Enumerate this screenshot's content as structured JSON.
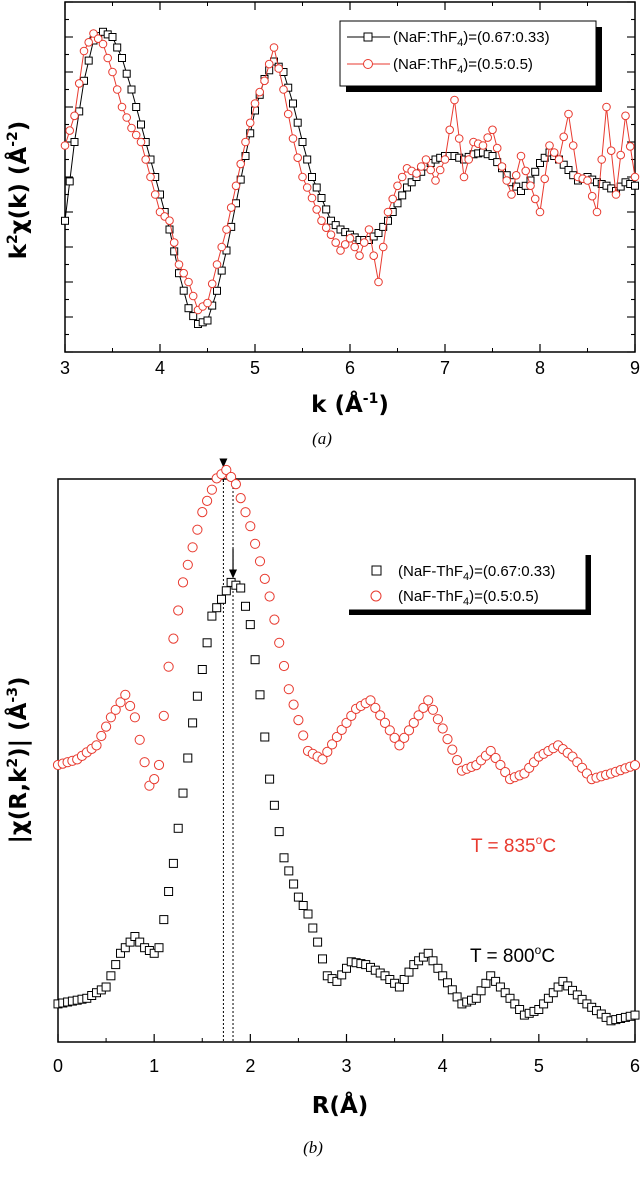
{
  "chart_data": [
    {
      "type": "line",
      "panel": "(a)",
      "xlabel": "k (Å-1)",
      "ylabel": "k2χ(k) (Å-2)",
      "xlim": [
        3,
        9
      ],
      "ylim": [
        -1.0,
        1.0
      ],
      "xticks": [
        "3",
        "4",
        "5",
        "6",
        "7",
        "8",
        "9"
      ],
      "legend": "top-right",
      "series": [
        {
          "name": "(NaF:ThF4)=(0.67:0.33)",
          "color": "#000000",
          "marker": "square",
          "points": [
            [
              3.0,
              -0.25
            ],
            [
              3.1,
              0.2
            ],
            [
              3.2,
              0.55
            ],
            [
              3.3,
              0.78
            ],
            [
              3.4,
              0.83
            ],
            [
              3.5,
              0.8
            ],
            [
              3.6,
              0.68
            ],
            [
              3.7,
              0.5
            ],
            [
              3.8,
              0.3
            ],
            [
              3.9,
              0.1
            ],
            [
              4.0,
              -0.1
            ],
            [
              4.1,
              -0.3
            ],
            [
              4.2,
              -0.55
            ],
            [
              4.3,
              -0.75
            ],
            [
              4.4,
              -0.84
            ],
            [
              4.5,
              -0.82
            ],
            [
              4.6,
              -0.65
            ],
            [
              4.7,
              -0.42
            ],
            [
              4.8,
              -0.15
            ],
            [
              4.9,
              0.12
            ],
            [
              5.0,
              0.38
            ],
            [
              5.1,
              0.56
            ],
            [
              5.2,
              0.66
            ],
            [
              5.3,
              0.6
            ],
            [
              5.4,
              0.42
            ],
            [
              5.5,
              0.2
            ],
            [
              5.6,
              0.0
            ],
            [
              5.7,
              -0.12
            ],
            [
              5.8,
              -0.25
            ],
            [
              5.9,
              -0.3
            ],
            [
              6.0,
              -0.33
            ],
            [
              6.1,
              -0.36
            ],
            [
              6.2,
              -0.36
            ],
            [
              6.3,
              -0.32
            ],
            [
              6.4,
              -0.25
            ],
            [
              6.5,
              -0.15
            ],
            [
              6.6,
              -0.06
            ],
            [
              6.7,
              0.0
            ],
            [
              6.8,
              0.06
            ],
            [
              6.9,
              0.1
            ],
            [
              7.0,
              0.12
            ],
            [
              7.1,
              0.12
            ],
            [
              7.2,
              0.1
            ],
            [
              7.3,
              0.13
            ],
            [
              7.4,
              0.14
            ],
            [
              7.5,
              0.12
            ],
            [
              7.6,
              0.05
            ],
            [
              7.7,
              -0.03
            ],
            [
              7.8,
              -0.08
            ],
            [
              7.9,
              -0.02
            ],
            [
              8.0,
              0.08
            ],
            [
              8.1,
              0.14
            ],
            [
              8.2,
              0.1
            ],
            [
              8.3,
              0.04
            ],
            [
              8.4,
              -0.02
            ],
            [
              8.5,
              0.0
            ],
            [
              8.6,
              -0.03
            ],
            [
              8.7,
              -0.05
            ],
            [
              8.8,
              -0.08
            ],
            [
              8.9,
              -0.03
            ],
            [
              9.0,
              -0.05
            ]
          ]
        },
        {
          "name": "(NaF:ThF4)=(0.5:0.5)",
          "color": "#e83a2f",
          "marker": "circle",
          "points": [
            [
              3.0,
              0.18
            ],
            [
              3.1,
              0.35
            ],
            [
              3.2,
              0.72
            ],
            [
              3.3,
              0.82
            ],
            [
              3.4,
              0.76
            ],
            [
              3.5,
              0.6
            ],
            [
              3.6,
              0.4
            ],
            [
              3.7,
              0.28
            ],
            [
              3.8,
              0.2
            ],
            [
              3.9,
              0.0
            ],
            [
              4.0,
              -0.2
            ],
            [
              4.1,
              -0.25
            ],
            [
              4.2,
              -0.5
            ],
            [
              4.3,
              -0.6
            ],
            [
              4.4,
              -0.76
            ],
            [
              4.5,
              -0.72
            ],
            [
              4.6,
              -0.5
            ],
            [
              4.7,
              -0.3
            ],
            [
              4.8,
              -0.05
            ],
            [
              4.9,
              0.2
            ],
            [
              5.0,
              0.42
            ],
            [
              5.1,
              0.55
            ],
            [
              5.2,
              0.74
            ],
            [
              5.3,
              0.5
            ],
            [
              5.4,
              0.22
            ],
            [
              5.5,
              0.0
            ],
            [
              5.6,
              -0.12
            ],
            [
              5.7,
              -0.25
            ],
            [
              5.8,
              -0.33
            ],
            [
              5.9,
              -0.42
            ],
            [
              6.0,
              -0.35
            ],
            [
              6.1,
              -0.45
            ],
            [
              6.2,
              -0.3
            ],
            [
              6.3,
              -0.6
            ],
            [
              6.4,
              -0.2
            ],
            [
              6.5,
              -0.05
            ],
            [
              6.6,
              0.05
            ],
            [
              6.7,
              0.02
            ],
            [
              6.8,
              0.1
            ],
            [
              6.9,
              -0.02
            ],
            [
              7.0,
              0.1
            ],
            [
              7.1,
              0.44
            ],
            [
              7.2,
              0.0
            ],
            [
              7.3,
              0.2
            ],
            [
              7.4,
              0.18
            ],
            [
              7.5,
              0.27
            ],
            [
              7.6,
              0.06
            ],
            [
              7.7,
              -0.1
            ],
            [
              7.8,
              0.12
            ],
            [
              7.9,
              -0.05
            ],
            [
              8.0,
              -0.2
            ],
            [
              8.1,
              0.18
            ],
            [
              8.2,
              0.1
            ],
            [
              8.3,
              0.36
            ],
            [
              8.4,
              0.0
            ],
            [
              8.5,
              -0.02
            ],
            [
              8.6,
              -0.2
            ],
            [
              8.7,
              0.4
            ],
            [
              8.8,
              -0.1
            ],
            [
              8.9,
              0.35
            ],
            [
              9.0,
              0.0
            ]
          ]
        }
      ]
    },
    {
      "type": "scatter",
      "panel": "(b)",
      "xlabel": "R(Å)",
      "ylabel": "|χ(R,k2)| (Å-3)",
      "xlim": [
        0,
        6
      ],
      "xticks": [
        "0",
        "1",
        "2",
        "3",
        "4",
        "5",
        "6"
      ],
      "legend": "top-right",
      "peak_markers_R": [
        1.72,
        1.82
      ],
      "annotations": [
        {
          "text": "T = 835°C",
          "color": "#e83a2f",
          "series": "(NaF-ThF4)=(0.5:0.5)"
        },
        {
          "text": "T = 800°C",
          "color": "#000000",
          "series": "(NaF-ThF4)=(0.67:0.33)"
        }
      ],
      "series": [
        {
          "name": "(NaF-ThF4)=(0.67:0.33)",
          "color": "#000000",
          "marker": "square",
          "points": [
            [
              0.0,
              0.1
            ],
            [
              0.3,
              0.12
            ],
            [
              0.5,
              0.16
            ],
            [
              0.65,
              0.28
            ],
            [
              0.8,
              0.34
            ],
            [
              0.9,
              0.3
            ],
            [
              1.0,
              0.28
            ],
            [
              1.05,
              0.3
            ],
            [
              1.2,
              0.6
            ],
            [
              1.4,
              1.1
            ],
            [
              1.6,
              1.48
            ],
            [
              1.8,
              1.6
            ],
            [
              1.9,
              1.58
            ],
            [
              2.0,
              1.45
            ],
            [
              2.1,
              1.2
            ],
            [
              2.2,
              0.9
            ],
            [
              2.35,
              0.62
            ],
            [
              2.5,
              0.48
            ],
            [
              2.6,
              0.42
            ],
            [
              2.7,
              0.32
            ],
            [
              2.8,
              0.2
            ],
            [
              2.9,
              0.18
            ],
            [
              3.05,
              0.25
            ],
            [
              3.2,
              0.24
            ],
            [
              3.4,
              0.2
            ],
            [
              3.55,
              0.16
            ],
            [
              3.7,
              0.24
            ],
            [
              3.85,
              0.28
            ],
            [
              4.0,
              0.2
            ],
            [
              4.2,
              0.1
            ],
            [
              4.35,
              0.12
            ],
            [
              4.5,
              0.2
            ],
            [
              4.7,
              0.12
            ],
            [
              4.85,
              0.06
            ],
            [
              5.0,
              0.08
            ],
            [
              5.25,
              0.18
            ],
            [
              5.5,
              0.1
            ],
            [
              5.75,
              0.04
            ],
            [
              6.0,
              0.06
            ]
          ]
        },
        {
          "name": "(NaF-ThF4)=(0.5:0.5)",
          "color": "#e83a2f",
          "marker": "circle",
          "points": [
            [
              0.0,
              0.95
            ],
            [
              0.2,
              0.97
            ],
            [
              0.4,
              1.02
            ],
            [
              0.55,
              1.12
            ],
            [
              0.7,
              1.2
            ],
            [
              0.8,
              1.12
            ],
            [
              0.9,
              0.96
            ],
            [
              0.96,
              0.86
            ],
            [
              1.05,
              0.95
            ],
            [
              1.15,
              1.3
            ],
            [
              1.3,
              1.6
            ],
            [
              1.5,
              1.85
            ],
            [
              1.65,
              1.97
            ],
            [
              1.75,
              2.0
            ],
            [
              1.85,
              1.95
            ],
            [
              2.0,
              1.8
            ],
            [
              2.2,
              1.55
            ],
            [
              2.4,
              1.22
            ],
            [
              2.6,
              1.0
            ],
            [
              2.75,
              0.97
            ],
            [
              2.9,
              1.05
            ],
            [
              3.1,
              1.15
            ],
            [
              3.25,
              1.18
            ],
            [
              3.4,
              1.1
            ],
            [
              3.55,
              1.02
            ],
            [
              3.7,
              1.1
            ],
            [
              3.85,
              1.18
            ],
            [
              4.0,
              1.08
            ],
            [
              4.2,
              0.93
            ],
            [
              4.35,
              0.95
            ],
            [
              4.5,
              1.0
            ],
            [
              4.7,
              0.9
            ],
            [
              4.85,
              0.92
            ],
            [
              5.0,
              0.98
            ],
            [
              5.2,
              1.02
            ],
            [
              5.35,
              0.98
            ],
            [
              5.55,
              0.9
            ],
            [
              5.75,
              0.92
            ],
            [
              6.0,
              0.95
            ]
          ]
        }
      ]
    }
  ],
  "panel_a": {
    "caption": "(a)",
    "xlabel_main": "k (Å",
    "xlabel_sup": "-1",
    "xlabel_close": ")",
    "ylabel_k": "k",
    "ylabel_sup1": "2",
    "ylabel_mid": "χ(k) (Å",
    "ylabel_sup2": "-2",
    "ylabel_close": ")",
    "legend": [
      {
        "pre": "(NaF:ThF",
        "sub": "4",
        "post": ")=(0.67:0.33)"
      },
      {
        "pre": "(NaF:ThF",
        "sub": "4",
        "post": ")=(0.5:0.5)"
      }
    ]
  },
  "panel_b": {
    "caption": "(b)",
    "xlabel": "R(Å)",
    "ylabel_pre": "|χ(R,k",
    "ylabel_sup1": "2",
    "ylabel_mid": ")| (Å",
    "ylabel_sup2": "-3",
    "ylabel_close": ")",
    "legend": [
      {
        "pre": "(NaF-ThF",
        "sub": "4",
        "post": ")=(0.67:0.33)"
      },
      {
        "pre": "(NaF-ThF",
        "sub": "4",
        "post": ")=(0.5:0.5)"
      }
    ],
    "t835_pre": "T = 835",
    "t835_sup": "o",
    "t835_post": "C",
    "t800_pre": "T = 800",
    "t800_sup": "o",
    "t800_post": "C"
  }
}
